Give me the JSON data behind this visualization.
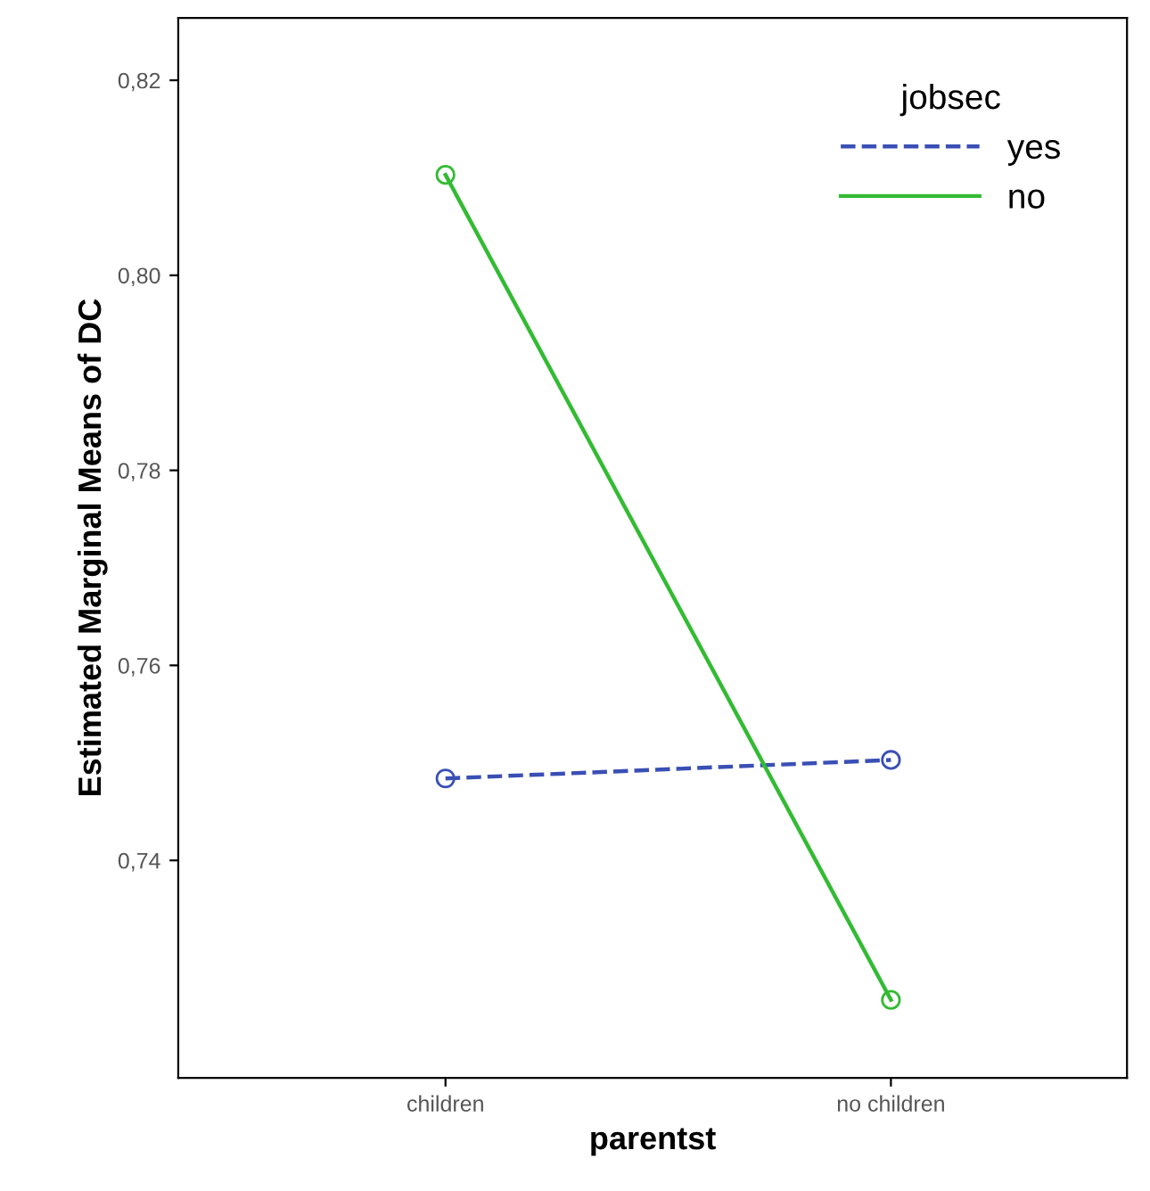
{
  "chart_data": {
    "type": "line",
    "xlabel": "parentst",
    "ylabel": "Estimated Marginal Means of DC",
    "legend_title": "jobsec",
    "categories": [
      "children",
      "no children"
    ],
    "series": [
      {
        "name": "yes",
        "color": "#3a4fb5",
        "values": [
          0.7484,
          0.7503
        ],
        "line_style": "dashed"
      },
      {
        "name": "no",
        "color": "#33bb33",
        "values": [
          0.8103,
          0.7257
        ],
        "line_style": "solid"
      }
    ],
    "ylim": [
      0.7177,
      0.8264
    ],
    "yticks": [
      {
        "value": 0.74,
        "label": "0,74"
      },
      {
        "value": 0.76,
        "label": "0,76"
      },
      {
        "value": 0.78,
        "label": "0,78"
      },
      {
        "value": 0.8,
        "label": "0,80"
      },
      {
        "value": 0.82,
        "label": "0,82"
      }
    ],
    "marker": "circle",
    "grid": false,
    "legend": "top right"
  }
}
